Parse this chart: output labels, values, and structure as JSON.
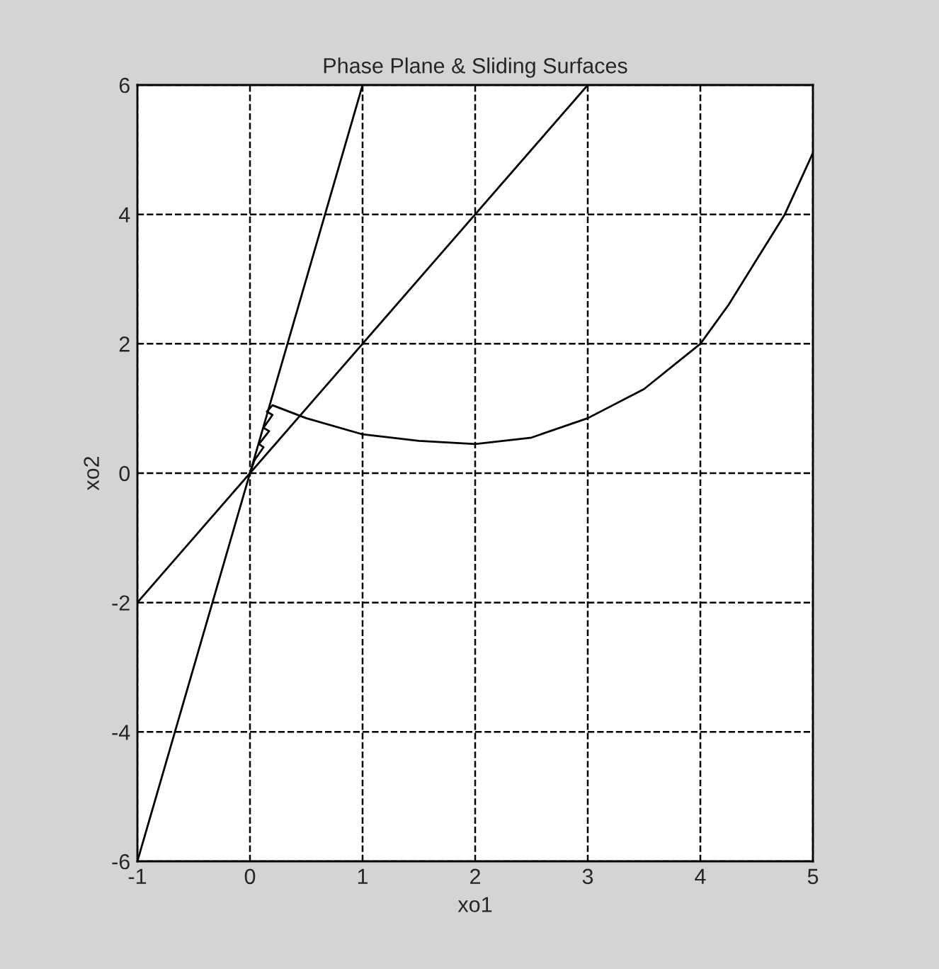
{
  "chart_data": {
    "type": "line",
    "title": "Phase Plane & Sliding Surfaces",
    "xlabel": "xo1",
    "ylabel": "xo2",
    "series": [
      {
        "color": "#000000",
        "x": [
          -1,
          1
        ],
        "values": [
          -6,
          6
        ]
      },
      {
        "color": "#000000",
        "x": [
          -1,
          3
        ],
        "values": [
          -2,
          6
        ]
      },
      {
        "color": "#000000",
        "x": [
          5,
          4.75,
          4.5,
          4.25,
          4,
          3.5,
          3,
          2.5,
          2,
          1.5,
          1,
          0.5,
          0.2,
          0.15,
          0.2,
          0.12,
          0.17,
          0.08,
          0.12,
          0.04,
          0.0
        ],
        "values": [
          4.95,
          4.0,
          3.3,
          2.6,
          2.0,
          1.3,
          0.85,
          0.55,
          0.45,
          0.5,
          0.6,
          0.85,
          1.05,
          0.95,
          0.9,
          0.7,
          0.65,
          0.45,
          0.4,
          0.2,
          0.0
        ]
      }
    ],
    "xlim": [
      -1,
      5
    ],
    "ylim": [
      -6,
      6
    ],
    "xticks": [
      -1,
      0,
      1,
      2,
      3,
      4,
      5
    ],
    "yticks": [
      -6,
      -4,
      -2,
      0,
      2,
      4,
      6
    ],
    "grid": true,
    "line_style": "solid"
  }
}
